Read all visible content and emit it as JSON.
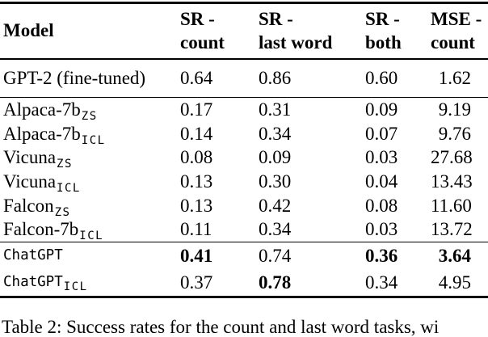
{
  "page": {
    "background": "#ffffff",
    "text_color": "#000000",
    "rule_color": "#000000"
  },
  "table": {
    "headers": [
      {
        "line1": "Model",
        "line2": ""
      },
      {
        "line1": "SR -",
        "line2": "count"
      },
      {
        "line1": "SR -",
        "line2": "last word"
      },
      {
        "line1": "SR -",
        "line2": "both"
      },
      {
        "line1": "MSE -",
        "line2": "count"
      }
    ],
    "rows": [
      {
        "model_base": "GPT-2 (fine-tuned)",
        "model_sub": "",
        "model_font": "serif",
        "values": [
          "0.64",
          "0.86",
          "0.60",
          "1.62"
        ],
        "bold": [
          false,
          false,
          false,
          false
        ]
      },
      {
        "model_base": "Alpaca-7b",
        "model_sub": "ZS",
        "model_font": "serif",
        "values": [
          "0.17",
          "0.31",
          "0.09",
          "9.19"
        ],
        "bold": [
          false,
          false,
          false,
          false
        ]
      },
      {
        "model_base": "Alpaca-7b",
        "model_sub": "ICL",
        "model_font": "serif",
        "values": [
          "0.14",
          "0.34",
          "0.07",
          "9.76"
        ],
        "bold": [
          false,
          false,
          false,
          false
        ]
      },
      {
        "model_base": "Vicuna",
        "model_sub": "ZS",
        "model_font": "serif",
        "values": [
          "0.08",
          "0.09",
          "0.03",
          "27.68"
        ],
        "bold": [
          false,
          false,
          false,
          false
        ]
      },
      {
        "model_base": "Vicuna",
        "model_sub": "ICL",
        "model_font": "serif",
        "values": [
          "0.13",
          "0.30",
          "0.04",
          "13.43"
        ],
        "bold": [
          false,
          false,
          false,
          false
        ]
      },
      {
        "model_base": "Falcon",
        "model_sub": "ZS",
        "model_font": "serif",
        "values": [
          "0.13",
          "0.42",
          "0.08",
          "11.60"
        ],
        "bold": [
          false,
          false,
          false,
          false
        ]
      },
      {
        "model_base": "Falcon-7b",
        "model_sub": "ICL",
        "model_font": "serif",
        "values": [
          "0.11",
          "0.34",
          "0.03",
          "13.72"
        ],
        "bold": [
          false,
          false,
          false,
          false
        ]
      },
      {
        "model_base": "ChatGPT",
        "model_sub": "",
        "model_font": "mono",
        "values": [
          "0.41",
          "0.74",
          "0.36",
          "3.64"
        ],
        "bold": [
          true,
          false,
          true,
          true
        ]
      },
      {
        "model_base": "ChatGPT",
        "model_sub": "ICL",
        "model_font": "mono",
        "values": [
          "0.37",
          "0.78",
          "0.34",
          "4.95"
        ],
        "bold": [
          false,
          true,
          false,
          false
        ]
      }
    ]
  },
  "caption": {
    "text": "Table 2: Success rates for the count and last word tasks, wi"
  }
}
